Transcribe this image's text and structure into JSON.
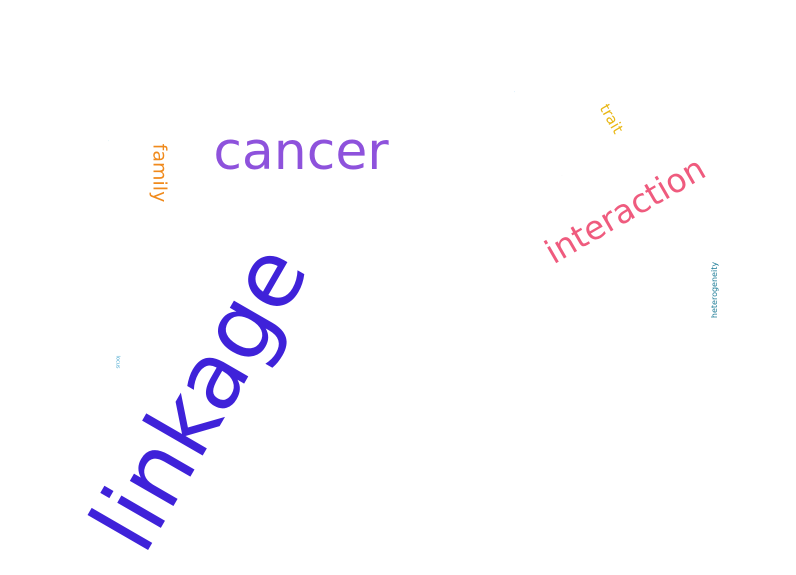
{
  "words": [
    {
      "id": "linkage",
      "text": "linkage",
      "color": "#3f22d9",
      "rotation": -60
    },
    {
      "id": "cancer",
      "text": "cancer",
      "color": "#8e52dc",
      "rotation": 0
    },
    {
      "id": "interaction",
      "text": "interaction",
      "color": "#ef5b7e",
      "rotation": -30
    },
    {
      "id": "family",
      "text": "family",
      "color": "#f08a1c",
      "rotation": 90
    },
    {
      "id": "trait",
      "text": "trait",
      "color": "#e9b714",
      "rotation": 60
    },
    {
      "id": "heterogeneity",
      "text": "heterogeneity",
      "color": "#1f7d98",
      "rotation": -90
    },
    {
      "id": "locus",
      "text": "locus",
      "color": "#45a7cf",
      "rotation": 90
    },
    {
      "id": "tiny1",
      "text": "·",
      "color": "#8ec9ec",
      "rotation": 60
    },
    {
      "id": "tiny2",
      "text": "·",
      "color": "#9fd7df",
      "rotation": 60
    },
    {
      "id": "tiny3",
      "text": "·",
      "color": "#c7c7c7",
      "rotation": 0
    }
  ]
}
